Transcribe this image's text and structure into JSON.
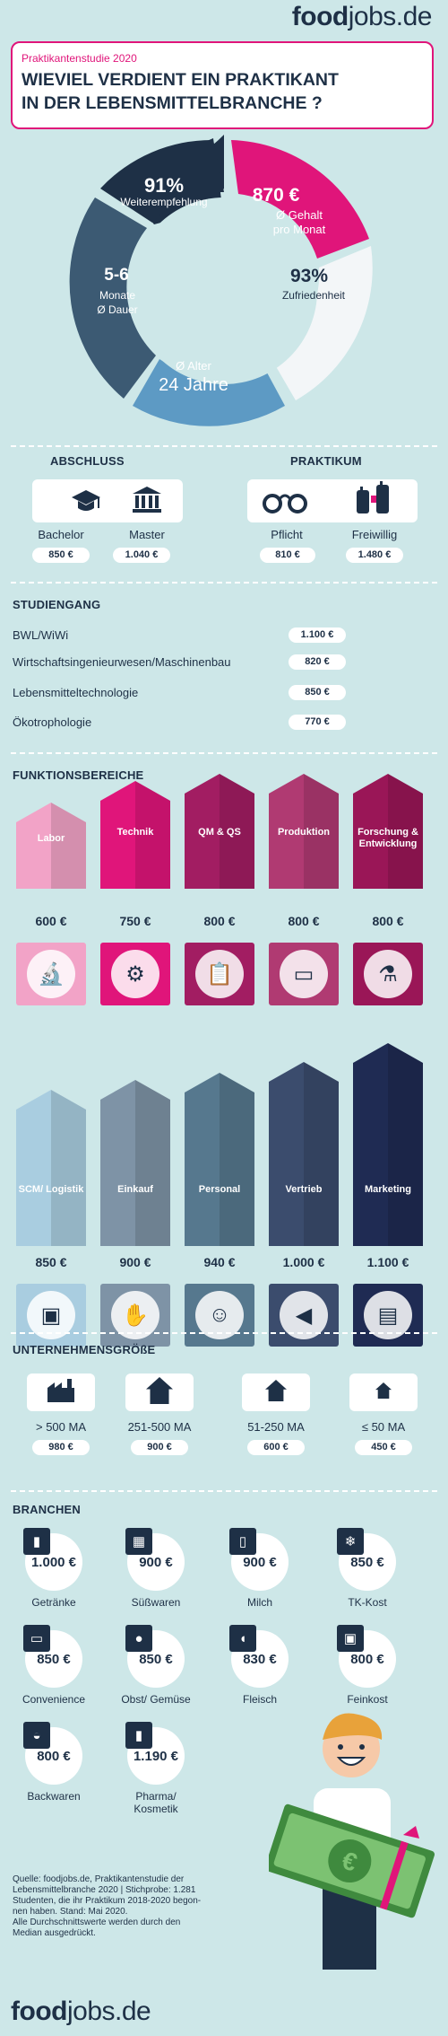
{
  "brand": {
    "food": "food",
    "jobs": "jobs.de"
  },
  "header": {
    "kicker": "Praktikantenstudie 2020",
    "title_line1": "WIEVIEL VERDIENT EIN PRAKTIKANT",
    "title_line2": "IN DER LEBENSMITTELBRANCHE ?"
  },
  "donut": {
    "seg1_value": "91%",
    "seg1_label": "Weiterempfehlung",
    "seg2_value": "870 €",
    "seg2_label1": "Ø Gehalt",
    "seg2_label2": "pro Monat",
    "seg3_value": "93%",
    "seg3_label": "Zufriedenheit",
    "seg4_label": "Ø Alter",
    "seg4_value": "24 Jahre",
    "seg5_value": "5-6",
    "seg5_label1": "Monate",
    "seg5_label2": "Ø Dauer"
  },
  "abschluss": {
    "heading": "ABSCHLUSS",
    "items": [
      {
        "label": "Bachelor",
        "value": "850 €",
        "icon": "graduation-cap-icon"
      },
      {
        "label": "Master",
        "value": "1.040 €",
        "icon": "university-icon"
      }
    ]
  },
  "praktikum": {
    "heading": "PRAKTIKUM",
    "items": [
      {
        "label": "Pflicht",
        "value": "810 €",
        "icon": "handcuffs-icon"
      },
      {
        "label": "Freiwillig",
        "value": "1.480 €",
        "icon": "raised-hands-icon"
      }
    ]
  },
  "studiengang": {
    "heading": "STUDIENGANG",
    "items": [
      {
        "label": "BWL/WiWi",
        "value": "1.100 €"
      },
      {
        "label": "Wirtschaftsingenieurwesen/Maschinenbau",
        "value": "820 €"
      },
      {
        "label": "Lebensmitteltechnologie",
        "value": "850 €"
      },
      {
        "label": "Ökotrophologie",
        "value": "770 €"
      }
    ]
  },
  "funktionsbereiche": {
    "heading": "FUNKTIONSBEREICHE",
    "row1": [
      {
        "label": "Labor",
        "value": "600 €",
        "amount": 600,
        "color": "#f2a3c7",
        "icon": "microscope-icon"
      },
      {
        "label": "Technik",
        "value": "750 €",
        "amount": 750,
        "color": "#e0157a",
        "icon": "gear-icon"
      },
      {
        "label": "QM & QS",
        "value": "800 €",
        "amount": 800,
        "color": "#a21d62",
        "icon": "clipboard-icon"
      },
      {
        "label": "Produktion",
        "value": "800 €",
        "amount": 800,
        "color": "#b03a72",
        "icon": "conveyor-icon"
      },
      {
        "label": "Forschung & Entwicklung",
        "value": "800 €",
        "amount": 800,
        "color": "#9a1657",
        "icon": "flask-icon"
      }
    ],
    "row2": [
      {
        "label": "SCM/ Logistik",
        "value": "850 €",
        "amount": 850,
        "color": "#a9cde0",
        "icon": "forklift-icon"
      },
      {
        "label": "Einkauf",
        "value": "900 €",
        "amount": 900,
        "color": "#7e93a6",
        "icon": "handshake-icon"
      },
      {
        "label": "Personal",
        "value": "940 €",
        "amount": 940,
        "color": "#56788e",
        "icon": "people-icon"
      },
      {
        "label": "Vertrieb",
        "value": "1.000 €",
        "amount": 1000,
        "color": "#3b4c6d",
        "icon": "megaphone-icon"
      },
      {
        "label": "Marketing",
        "value": "1.100 €",
        "amount": 1100,
        "color": "#1f2b53",
        "icon": "chart-icon"
      }
    ]
  },
  "unternehmen": {
    "heading": "UNTERNEHMENSGRÖßE",
    "items": [
      {
        "label": "> 500 MA",
        "value": "980 €",
        "icon": "factory-icon"
      },
      {
        "label": "251-500 MA",
        "value": "900 €",
        "icon": "house-large-icon"
      },
      {
        "label": "51-250 MA",
        "value": "600 €",
        "icon": "house-medium-icon"
      },
      {
        "label": "≤ 50 MA",
        "value": "450 €",
        "icon": "house-small-icon"
      }
    ]
  },
  "branchen": {
    "heading": "BRANCHEN",
    "items": [
      {
        "label": "Getränke",
        "value": "1.000 €",
        "icon": "bottle-icon"
      },
      {
        "label": "Süßwaren",
        "value": "900 €",
        "icon": "chocolate-icon"
      },
      {
        "label": "Milch",
        "value": "900 €",
        "icon": "milk-icon"
      },
      {
        "label": "TK-Kost",
        "value": "850 €",
        "icon": "snowflake-icon"
      },
      {
        "label": "Convenience",
        "value": "850 €",
        "icon": "microwave-icon"
      },
      {
        "label": "Obst/ Gemüse",
        "value": "850 €",
        "icon": "fruit-icon"
      },
      {
        "label": "Fleisch",
        "value": "830 €",
        "icon": "meat-icon"
      },
      {
        "label": "Feinkost",
        "value": "800 €",
        "icon": "jar-icon"
      },
      {
        "label": "Backwaren",
        "value": "800 €",
        "icon": "bread-icon"
      },
      {
        "label": "Pharma/ Kosmetik",
        "value": "1.190 €",
        "icon": "cosmetics-icon"
      }
    ]
  },
  "source": {
    "l1": "Quelle: foodjobs.de, Praktikantenstudie der",
    "l2": "Lebensmittelbranche 2020 | Stichprobe: 1.281",
    "l3": "Studenten, die ihr Praktikum 2018-2020 begon-",
    "l4": "nen haben. Stand: Mai 2020.",
    "l5": "Alle Durchschnittswerte werden durch den",
    "l6": "Median ausgedrückt."
  },
  "colors": {
    "pink": "#e0157a",
    "navy": "#1e3046",
    "bg": "#cde7e8"
  }
}
